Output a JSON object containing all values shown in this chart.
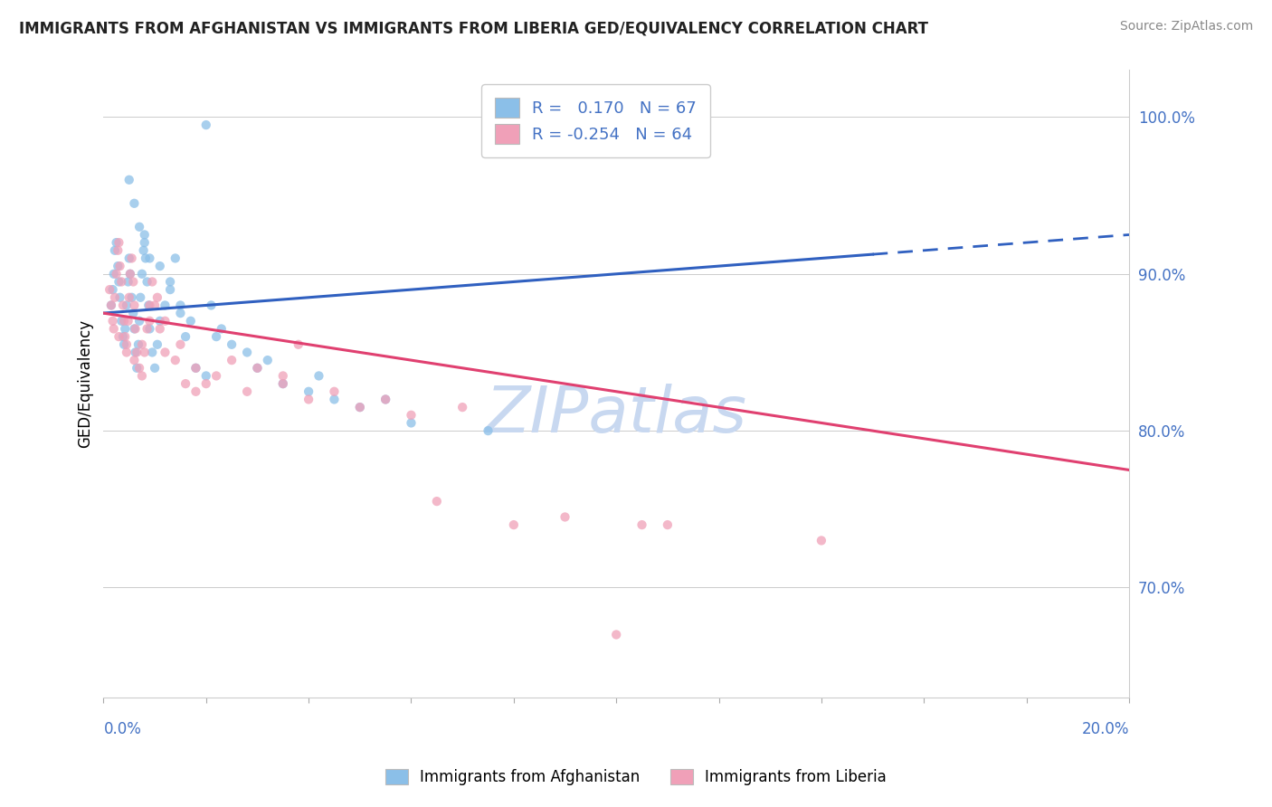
{
  "title": "IMMIGRANTS FROM AFGHANISTAN VS IMMIGRANTS FROM LIBERIA GED/EQUIVALENCY CORRELATION CHART",
  "source": "Source: ZipAtlas.com",
  "ylabel": "GED/Equivalency",
  "xmin": 0.0,
  "xmax": 20.0,
  "ymin": 63.0,
  "ymax": 103.0,
  "yticks": [
    70.0,
    80.0,
    90.0,
    100.0
  ],
  "ytick_labels": [
    "70.0%",
    "80.0%",
    "90.0%",
    "100.0%"
  ],
  "r_afghanistan": 0.17,
  "n_afghanistan": 67,
  "r_liberia": -0.254,
  "n_liberia": 64,
  "color_afghanistan": "#8BBFE8",
  "color_liberia": "#F0A0B8",
  "color_trendline_afghanistan": "#3060C0",
  "color_trendline_liberia": "#E04070",
  "color_axis_blue": "#4472C4",
  "watermark_color": "#C8D8F0",
  "afg_trendline": [
    87.5,
    92.5
  ],
  "lib_trendline": [
    87.5,
    77.5
  ],
  "afg_x": [
    0.15,
    0.18,
    0.2,
    0.22,
    0.25,
    0.28,
    0.3,
    0.32,
    0.35,
    0.38,
    0.4,
    0.42,
    0.45,
    0.48,
    0.5,
    0.52,
    0.55,
    0.58,
    0.6,
    0.62,
    0.65,
    0.68,
    0.7,
    0.72,
    0.75,
    0.78,
    0.8,
    0.82,
    0.85,
    0.88,
    0.9,
    0.95,
    1.0,
    1.05,
    1.1,
    1.2,
    1.3,
    1.4,
    1.5,
    1.6,
    1.8,
    2.0,
    2.1,
    2.3,
    2.5,
    3.0,
    3.5,
    4.0,
    4.5,
    5.0,
    6.0,
    7.5,
    2.0,
    0.5,
    0.6,
    0.7,
    0.8,
    0.9,
    1.1,
    1.3,
    1.5,
    1.7,
    2.2,
    2.8,
    3.2,
    4.2,
    5.5
  ],
  "afg_y": [
    88.0,
    89.0,
    90.0,
    91.5,
    92.0,
    90.5,
    89.5,
    88.5,
    87.0,
    86.0,
    85.5,
    86.5,
    88.0,
    89.5,
    91.0,
    90.0,
    88.5,
    87.5,
    86.5,
    85.0,
    84.0,
    85.5,
    87.0,
    88.5,
    90.0,
    91.5,
    92.5,
    91.0,
    89.5,
    88.0,
    86.5,
    85.0,
    84.0,
    85.5,
    87.0,
    88.0,
    89.5,
    91.0,
    87.5,
    86.0,
    84.0,
    83.5,
    88.0,
    86.5,
    85.5,
    84.0,
    83.0,
    82.5,
    82.0,
    81.5,
    80.5,
    80.0,
    99.5,
    96.0,
    94.5,
    93.0,
    92.0,
    91.0,
    90.5,
    89.0,
    88.0,
    87.0,
    86.0,
    85.0,
    84.5,
    83.5,
    82.0
  ],
  "lib_x": [
    0.12,
    0.15,
    0.18,
    0.2,
    0.22,
    0.25,
    0.28,
    0.3,
    0.32,
    0.35,
    0.38,
    0.4,
    0.42,
    0.45,
    0.48,
    0.5,
    0.52,
    0.55,
    0.58,
    0.6,
    0.62,
    0.65,
    0.7,
    0.75,
    0.8,
    0.85,
    0.9,
    0.95,
    1.0,
    1.1,
    1.2,
    1.4,
    1.6,
    1.8,
    2.0,
    2.5,
    3.0,
    3.5,
    4.0,
    5.0,
    6.0,
    8.0,
    10.0,
    0.3,
    0.45,
    0.6,
    0.75,
    0.9,
    1.05,
    1.2,
    1.5,
    1.8,
    2.2,
    2.8,
    3.5,
    4.5,
    5.5,
    7.0,
    9.0,
    11.0,
    3.8,
    6.5,
    10.5,
    14.0
  ],
  "lib_y": [
    89.0,
    88.0,
    87.0,
    86.5,
    88.5,
    90.0,
    91.5,
    92.0,
    90.5,
    89.5,
    88.0,
    87.0,
    86.0,
    85.5,
    87.0,
    88.5,
    90.0,
    91.0,
    89.5,
    88.0,
    86.5,
    85.0,
    84.0,
    83.5,
    85.0,
    86.5,
    88.0,
    89.5,
    88.0,
    86.5,
    85.0,
    84.5,
    83.0,
    82.5,
    83.0,
    84.5,
    84.0,
    83.5,
    82.0,
    81.5,
    81.0,
    74.0,
    67.0,
    86.0,
    85.0,
    84.5,
    85.5,
    87.0,
    88.5,
    87.0,
    85.5,
    84.0,
    83.5,
    82.5,
    83.0,
    82.5,
    82.0,
    81.5,
    74.5,
    74.0,
    85.5,
    75.5,
    74.0,
    73.0
  ]
}
